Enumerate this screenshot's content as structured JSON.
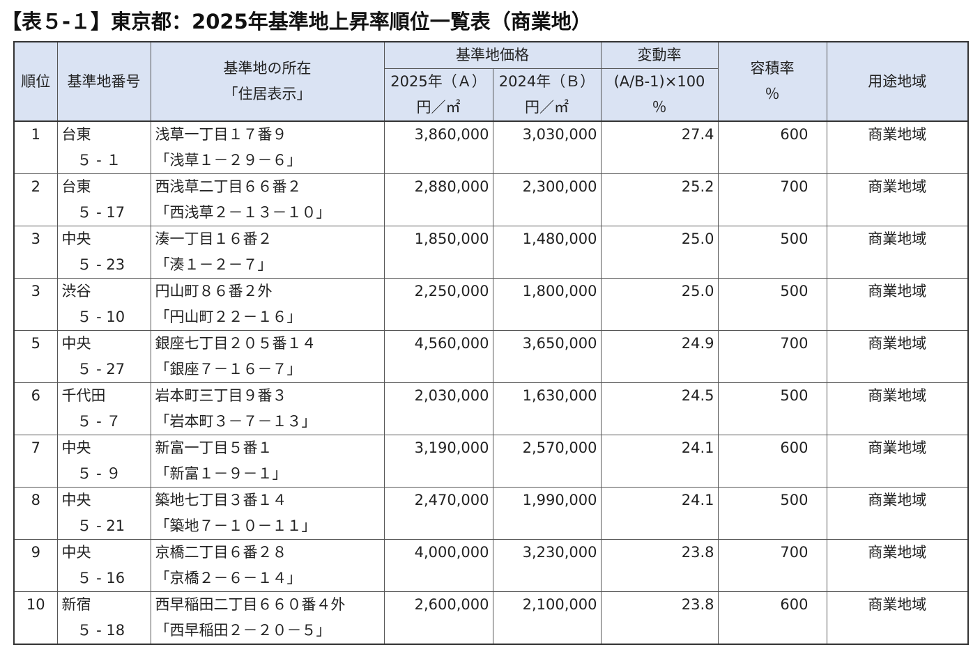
{
  "title": "【表５-１】東京都：2025年基準地上昇率順位一覧表（商業地）",
  "headers": {
    "rank": "順位",
    "code": "基準地番号",
    "location_line1": "基準地の所在",
    "location_line2": "「住居表示」",
    "price_group": "基準地価格",
    "price_2025_line1": "2025年（Ａ）",
    "price_2025_line2": "円／㎡",
    "price_2024_line1": "2024年（Ｂ）",
    "price_2024_line2": "円／㎡",
    "change_group": "変動率",
    "change_line1": "(A/B-1)×100",
    "change_line2": "％",
    "far_line1": "容積率",
    "far_line2": "％",
    "use": "用途地域"
  },
  "rows": [
    {
      "rank": "1",
      "ward": "台東",
      "num": "５ - １",
      "address": "浅草一丁目１７番９",
      "display": "「浅草１－２９－６」",
      "price_2025": "3,860,000",
      "price_2024": "3,030,000",
      "change": "27.4",
      "far": "600",
      "use": "商業地域"
    },
    {
      "rank": "2",
      "ward": "台東",
      "num": "５ - 17",
      "address": "西浅草二丁目６６番２",
      "display": "「西浅草２－１３－１０」",
      "price_2025": "2,880,000",
      "price_2024": "2,300,000",
      "change": "25.2",
      "far": "700",
      "use": "商業地域"
    },
    {
      "rank": "3",
      "ward": "中央",
      "num": "５ - 23",
      "address": "湊一丁目１６番２",
      "display": "「湊１－２－７」",
      "price_2025": "1,850,000",
      "price_2024": "1,480,000",
      "change": "25.0",
      "far": "500",
      "use": "商業地域"
    },
    {
      "rank": "3",
      "ward": "渋谷",
      "num": "５ - 10",
      "address": "円山町８６番２外",
      "display": "「円山町２２－１６」",
      "price_2025": "2,250,000",
      "price_2024": "1,800,000",
      "change": "25.0",
      "far": "500",
      "use": "商業地域"
    },
    {
      "rank": "5",
      "ward": "中央",
      "num": "５ - 27",
      "address": "銀座七丁目２０５番１４",
      "display": "「銀座７－１６－７」",
      "price_2025": "4,560,000",
      "price_2024": "3,650,000",
      "change": "24.9",
      "far": "700",
      "use": "商業地域"
    },
    {
      "rank": "6",
      "ward": "千代田",
      "num": "５ - ７",
      "address": "岩本町三丁目９番３",
      "display": "「岩本町３－７－１３」",
      "price_2025": "2,030,000",
      "price_2024": "1,630,000",
      "change": "24.5",
      "far": "500",
      "use": "商業地域"
    },
    {
      "rank": "7",
      "ward": "中央",
      "num": "５ - ９",
      "address": "新富一丁目５番１",
      "display": "「新富１－９－１」",
      "price_2025": "3,190,000",
      "price_2024": "2,570,000",
      "change": "24.1",
      "far": "600",
      "use": "商業地域"
    },
    {
      "rank": "8",
      "ward": "中央",
      "num": "５ - 21",
      "address": "築地七丁目３番１４",
      "display": "「築地７－１０－１１」",
      "price_2025": "2,470,000",
      "price_2024": "1,990,000",
      "change": "24.1",
      "far": "500",
      "use": "商業地域"
    },
    {
      "rank": "9",
      "ward": "中央",
      "num": "５ - 16",
      "address": "京橋二丁目６番２８",
      "display": "「京橋２－６－１４」",
      "price_2025": "4,000,000",
      "price_2024": "3,230,000",
      "change": "23.8",
      "far": "700",
      "use": "商業地域"
    },
    {
      "rank": "10",
      "ward": "新宿",
      "num": "５ - 18",
      "address": "西早稲田二丁目６６０番４外",
      "display": "「西早稲田２－２０－５」",
      "price_2025": "2,600,000",
      "price_2024": "2,100,000",
      "change": "23.8",
      "far": "600",
      "use": "商業地域"
    }
  ]
}
